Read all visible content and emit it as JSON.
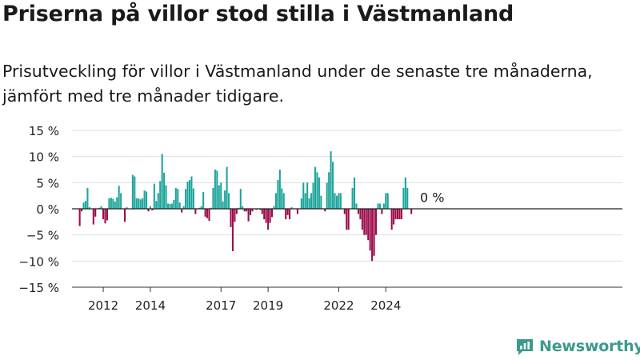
{
  "title": "Priserna på villor stod stilla i Västmanland",
  "subtitle": "Prisutveckling för villor i Västmanland under de senaste tre månaderna, jämfört med tre månader tidigare.",
  "brand": {
    "name": "Newsworthy",
    "color": "#3a9a8d"
  },
  "chart_data": {
    "type": "bar",
    "x_start": "2011-01",
    "ylim": [
      -15,
      15
    ],
    "y_ticks": [
      15,
      10,
      5,
      0,
      -5,
      -10,
      -15
    ],
    "y_tick_labels": [
      "15 %",
      "10 %",
      "5 %",
      "0 %",
      "−5 %",
      "−10 %",
      "−15 %"
    ],
    "x_ticks": [
      {
        "label": "2012",
        "month": "2012-01"
      },
      {
        "label": "2014",
        "month": "2014-01"
      },
      {
        "label": "2017",
        "month": "2017-01"
      },
      {
        "label": "2019",
        "month": "2019-01"
      },
      {
        "label": "2022",
        "month": "2022-01"
      },
      {
        "label": "2024",
        "month": "2024-01"
      }
    ],
    "annotation": "0 %",
    "grid": true,
    "colors": {
      "positive": "#1ba49a",
      "negative": "#9c0a4a",
      "grid": "#dedede",
      "axis": "#222222"
    },
    "values": [
      -3.3,
      -0.5,
      1.2,
      1.5,
      4,
      0.3,
      0,
      -3,
      -1.5,
      0,
      0.2,
      0.5,
      -2,
      -2.8,
      -2.2,
      2,
      2.1,
      1.9,
      1.4,
      2.2,
      4.4,
      3,
      0,
      -2.5,
      0.3,
      0,
      0,
      6.5,
      6.2,
      2,
      2,
      1.8,
      2,
      3.5,
      3.3,
      -0.5,
      0.5,
      -0.3,
      4.8,
      1.5,
      3,
      5.3,
      10.5,
      6.9,
      4.5,
      1,
      0.9,
      1,
      1.7,
      4,
      3.8,
      1.2,
      -0.7,
      0.5,
      3.8,
      5.2,
      5.5,
      6.2,
      3.9,
      -1,
      0,
      0.2,
      0.5,
      3.2,
      -1.5,
      -1.8,
      -2.3,
      0.2,
      4,
      7.5,
      7.3,
      4.5,
      5,
      1.4,
      3.5,
      8,
      3,
      -3.5,
      -8.1,
      -2.5,
      -1,
      0.2,
      3.8,
      0.5,
      -0.5,
      -0.5,
      -2.4,
      -1.2,
      -0.5,
      0,
      -0.2,
      0,
      -0.2,
      -1,
      -2,
      -2.7,
      -4,
      -2.7,
      -1.6,
      0.5,
      3,
      5.5,
      7.5,
      3.9,
      3,
      -2,
      -1.2,
      -2,
      0.3,
      0,
      0,
      -1,
      0,
      2,
      5,
      3,
      5,
      2,
      3,
      5,
      8,
      7,
      6,
      2.5,
      0,
      -0.5,
      5,
      7,
      11,
      9,
      3,
      2.5,
      3,
      3,
      0,
      -1,
      -4,
      -4,
      0,
      4,
      6,
      1,
      -1,
      -2,
      -4,
      -5,
      -5,
      -6,
      -8,
      -10,
      -9,
      -5,
      1,
      1,
      -1,
      1,
      3,
      3,
      0,
      -4,
      -3,
      -2,
      -2,
      -2,
      -2,
      4,
      6,
      4,
      0,
      -1
    ]
  }
}
